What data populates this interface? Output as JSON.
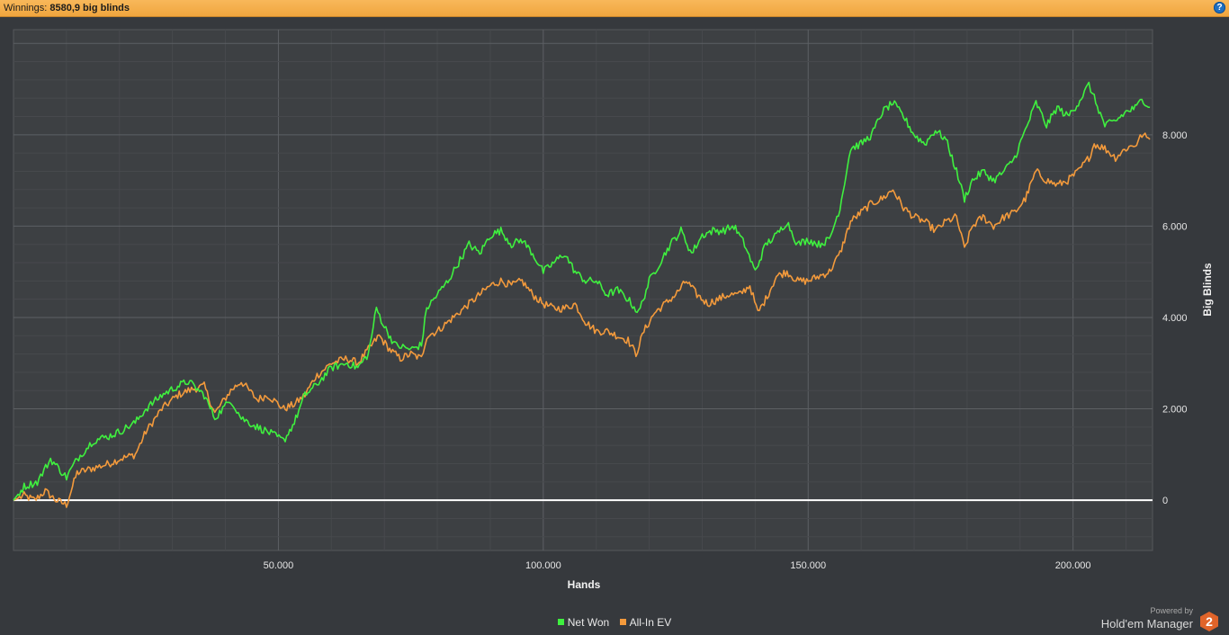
{
  "header": {
    "winnings_label": "Winnings:",
    "winnings_value": "8580,9 big blinds",
    "help_glyph": "?"
  },
  "colors": {
    "background": "#36393d",
    "plot_area": "#3d4043",
    "grid": "#55585b",
    "net_won": "#3ff03f",
    "all_in_ev": "#f39a3c",
    "zero_line": "#ffffff",
    "header_bar": "#f3ad4a",
    "brand_badge": "#e0642a"
  },
  "chart_data": {
    "type": "line",
    "xlabel": "Hands",
    "ylabel": "Big Blinds",
    "xlim": [
      0,
      215000
    ],
    "ylim": [
      -1100,
      10300
    ],
    "x_ticks": [
      50000,
      100000,
      150000,
      200000
    ],
    "x_tick_labels": [
      "50.000",
      "100.000",
      "150.000",
      "200.000"
    ],
    "y_ticks": [
      0,
      2000,
      4000,
      6000,
      8000
    ],
    "y_tick_labels": [
      "0",
      "2.000",
      "4.000",
      "6.000",
      "8.000"
    ],
    "grid": true,
    "y_axis_side": "right",
    "legend_position": "bottom-center",
    "series": [
      {
        "name": "Net Won",
        "x": [
          0,
          2000,
          4500,
          7000,
          10000,
          12000,
          15000,
          18000,
          20000,
          23000,
          25000,
          28000,
          31000,
          33000,
          36000,
          38000,
          41000,
          43000,
          46000,
          48000,
          51000,
          53000,
          55000,
          57000,
          60000,
          63000,
          65000,
          67000,
          68500,
          70000,
          72000,
          75000,
          77000,
          78000,
          80000,
          82000,
          84000,
          86000,
          88000,
          90000,
          92000,
          94000,
          96000,
          98000,
          100000,
          102000,
          104000,
          106000,
          108000,
          110000,
          112000,
          114000,
          116000,
          118000,
          120000,
          122000,
          124000,
          126000,
          128000,
          130000,
          132000,
          134000,
          136000,
          138000,
          140000,
          142000,
          144000,
          146000,
          148000,
          150000,
          152000,
          154000,
          156000,
          158000,
          160000,
          162000,
          164000,
          166000,
          168000,
          170000,
          172000,
          174000,
          176000,
          178000,
          179500,
          181000,
          183000,
          185000,
          187000,
          189000,
          191000,
          193000,
          195000,
          197000,
          199000,
          201000,
          203000,
          204000,
          206000,
          208000,
          210000,
          212000,
          213000,
          214500
        ],
        "values": [
          0,
          300,
          400,
          900,
          500,
          900,
          1300,
          1400,
          1500,
          1700,
          2000,
          2300,
          2500,
          2600,
          2300,
          1800,
          2200,
          1800,
          1600,
          1500,
          1300,
          1700,
          2300,
          2500,
          2900,
          3000,
          2900,
          3200,
          4200,
          3800,
          3400,
          3300,
          3400,
          4200,
          4500,
          4800,
          5200,
          5600,
          5400,
          5800,
          5900,
          5600,
          5700,
          5400,
          5000,
          5200,
          5400,
          5000,
          4800,
          4800,
          4500,
          4600,
          4400,
          4100,
          4800,
          5200,
          5600,
          5900,
          5400,
          5800,
          5900,
          5900,
          6000,
          5600,
          5000,
          5600,
          5800,
          6100,
          5600,
          5700,
          5600,
          5700,
          6400,
          7700,
          7800,
          8000,
          8500,
          8700,
          8400,
          8000,
          7800,
          8100,
          7900,
          7200,
          6600,
          7000,
          7200,
          7000,
          7200,
          7500,
          8100,
          8700,
          8200,
          8600,
          8400,
          8700,
          9100,
          8800,
          8200,
          8300,
          8500,
          8600,
          8800,
          8600
        ]
      },
      {
        "name": "All-In EV",
        "x": [
          0,
          2000,
          4000,
          6000,
          8000,
          10000,
          12000,
          15000,
          18000,
          20000,
          23000,
          25000,
          28000,
          31000,
          33000,
          36000,
          38000,
          41000,
          43000,
          46000,
          48000,
          51000,
          53000,
          55000,
          57000,
          60000,
          63000,
          65000,
          67000,
          69000,
          71000,
          73000,
          75000,
          77000,
          78000,
          80000,
          82000,
          84000,
          86000,
          88000,
          90000,
          92000,
          94000,
          96000,
          98000,
          100000,
          102000,
          104000,
          106000,
          108000,
          110000,
          112000,
          114000,
          116000,
          117500,
          119000,
          121000,
          123000,
          125000,
          127000,
          129000,
          131000,
          133000,
          135000,
          137000,
          139000,
          140500,
          142000,
          144000,
          146000,
          148000,
          150000,
          152000,
          154000,
          156000,
          158000,
          160000,
          162000,
          164000,
          166000,
          168000,
          170000,
          172000,
          174000,
          176000,
          178000,
          179500,
          181000,
          183000,
          185000,
          187000,
          189000,
          191000,
          193000,
          195000,
          197000,
          199000,
          201000,
          203000,
          204000,
          206000,
          208000,
          210000,
          212000,
          213000,
          214500
        ],
        "values": [
          0,
          100,
          0,
          200,
          0,
          -100,
          600,
          700,
          800,
          900,
          1000,
          1500,
          2000,
          2300,
          2400,
          2500,
          1900,
          2400,
          2600,
          2200,
          2300,
          2000,
          2100,
          2300,
          2700,
          3000,
          3100,
          3000,
          3300,
          3600,
          3300,
          3100,
          3200,
          3100,
          3600,
          3700,
          3900,
          4100,
          4300,
          4500,
          4700,
          4800,
          4700,
          4800,
          4500,
          4300,
          4200,
          4200,
          4300,
          3900,
          3700,
          3700,
          3600,
          3500,
          3200,
          3700,
          4100,
          4300,
          4500,
          4800,
          4500,
          4300,
          4400,
          4500,
          4500,
          4700,
          4100,
          4400,
          4900,
          5000,
          4800,
          4800,
          4900,
          5000,
          5400,
          6100,
          6300,
          6500,
          6600,
          6800,
          6400,
          6200,
          6100,
          5900,
          6100,
          6200,
          5500,
          6000,
          6200,
          6000,
          6200,
          6300,
          6600,
          7200,
          7000,
          6900,
          7000,
          7200,
          7500,
          7800,
          7700,
          7500,
          7700,
          7800,
          8000,
          7900
        ]
      }
    ]
  },
  "legend": {
    "items": [
      {
        "label": "Net Won",
        "color": "#3ff03f"
      },
      {
        "label": "All-In EV",
        "color": "#f39a3c"
      }
    ]
  },
  "branding": {
    "powered_by": "Powered by",
    "product": "Hold'em Manager",
    "badge": "2"
  }
}
